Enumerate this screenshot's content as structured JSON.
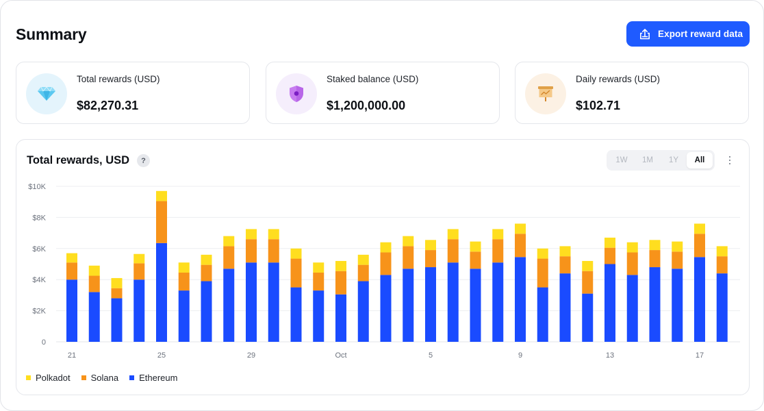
{
  "page": {
    "title": "Summary",
    "export_label": "Export reward data"
  },
  "stats": [
    {
      "label": "Total rewards (USD)",
      "value": "$82,270.31",
      "icon": "diamond-icon"
    },
    {
      "label": "Staked balance (USD)",
      "value": "$1,200,000.00",
      "icon": "shield-icon"
    },
    {
      "label": "Daily rewards (USD)",
      "value": "$102.71",
      "icon": "presentation-chart-icon"
    }
  ],
  "chart_panel": {
    "title": "Total rewards, USD",
    "help": "?",
    "ranges": [
      "1W",
      "1M",
      "1Y",
      "All"
    ],
    "active_range": "All"
  },
  "chart_data": {
    "type": "bar",
    "stacked": true,
    "title": "Total rewards, USD",
    "y_ticks": [
      "0",
      "$2K",
      "$4K",
      "$6K",
      "$8K",
      "$10K"
    ],
    "ylim": [
      0,
      10000
    ],
    "x_tick_labels": [
      {
        "index": 0,
        "label": "21"
      },
      {
        "index": 4,
        "label": "25"
      },
      {
        "index": 8,
        "label": "29"
      },
      {
        "index": 12,
        "label": "Oct"
      },
      {
        "index": 16,
        "label": "5"
      },
      {
        "index": 20,
        "label": "9"
      },
      {
        "index": 24,
        "label": "13"
      },
      {
        "index": 28,
        "label": "17"
      }
    ],
    "grid": true,
    "legend_position": "bottom-left",
    "series": [
      {
        "name": "Ethereum",
        "color": "#1a4bff",
        "values": [
          4000,
          3200,
          2800,
          4000,
          6350,
          3300,
          3900,
          4700,
          5100,
          5100,
          3500,
          3300,
          3050,
          3900,
          4300,
          4700,
          4800,
          5100,
          4700,
          5100,
          5450,
          3500,
          4400,
          3100,
          5000,
          4300,
          4800,
          4700,
          5450,
          4400
        ]
      },
      {
        "name": "Solana",
        "color": "#f7931a",
        "values": [
          1100,
          1050,
          650,
          1050,
          2700,
          1150,
          1050,
          1450,
          1500,
          1500,
          1850,
          1150,
          1500,
          1050,
          1450,
          1450,
          1100,
          1500,
          1100,
          1500,
          1500,
          1850,
          1100,
          1450,
          1050,
          1450,
          1100,
          1100,
          1500,
          1100
        ]
      },
      {
        "name": "Polkadot",
        "color": "#ffde1f",
        "values": [
          600,
          650,
          650,
          600,
          650,
          650,
          650,
          650,
          650,
          650,
          650,
          650,
          650,
          650,
          650,
          650,
          650,
          650,
          650,
          650,
          650,
          650,
          650,
          650,
          650,
          650,
          650,
          650,
          650,
          650
        ]
      }
    ]
  },
  "legend": [
    {
      "name": "Polkadot",
      "color": "#ffde1f"
    },
    {
      "name": "Solana",
      "color": "#f7931a"
    },
    {
      "name": "Ethereum",
      "color": "#1a4bff"
    }
  ]
}
